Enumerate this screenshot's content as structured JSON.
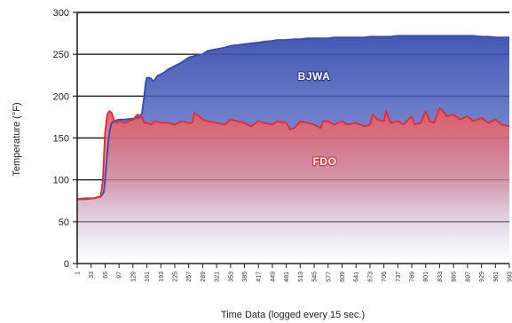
{
  "chart_data": {
    "type": "area",
    "title": "",
    "xlabel": "Time Data (logged every 15 sec.)",
    "ylabel": "Temperature (°F)",
    "ylim": [
      0,
      300
    ],
    "yticks": [
      0,
      50,
      100,
      150,
      200,
      250,
      300
    ],
    "xlim": [
      1,
      993
    ],
    "xticks": [
      "1",
      "33",
      "65",
      "97",
      "129",
      "161",
      "193",
      "225",
      "257",
      "289",
      "321",
      "353",
      "385",
      "417",
      "449",
      "481",
      "513",
      "545",
      "577",
      "609",
      "641",
      "673",
      "705",
      "737",
      "769",
      "801",
      "833",
      "865",
      "897",
      "929",
      "961",
      "993"
    ],
    "grid": "horizontal",
    "legend": "none",
    "series": [
      {
        "name": "BJWA",
        "color": "#3a4fb0",
        "x": [
          1,
          20,
          40,
          55,
          62,
          65,
          68,
          72,
          76,
          80,
          85,
          90,
          97,
          110,
          129,
          145,
          150,
          155,
          158,
          161,
          165,
          170,
          175,
          180,
          185,
          193,
          200,
          210,
          225,
          240,
          257,
          270,
          289,
          300,
          321,
          340,
          353,
          370,
          385,
          400,
          417,
          430,
          449,
          460,
          481,
          500,
          513,
          530,
          545,
          560,
          577,
          590,
          609,
          620,
          641,
          660,
          673,
          690,
          705,
          720,
          737,
          750,
          769,
          780,
          801,
          820,
          833,
          850,
          865,
          880,
          897,
          910,
          929,
          945,
          961,
          975,
          993
        ],
        "values": [
          77,
          77,
          78,
          80,
          85,
          100,
          120,
          145,
          160,
          168,
          170,
          171,
          172,
          172,
          173,
          175,
          180,
          200,
          215,
          222,
          222,
          221,
          218,
          220,
          224,
          226,
          228,
          232,
          236,
          240,
          246,
          248,
          250,
          254,
          256,
          258,
          260,
          261,
          262,
          263,
          264,
          265,
          266,
          267,
          267,
          268,
          268,
          269,
          269,
          269,
          269,
          270,
          270,
          270,
          270,
          270,
          271,
          271,
          271,
          271,
          272,
          272,
          272,
          272,
          272,
          272,
          272,
          272,
          272,
          272,
          272,
          272,
          271,
          271,
          270,
          270,
          270
        ]
      },
      {
        "name": "FDO",
        "color": "#e0303a",
        "x": [
          1,
          20,
          40,
          55,
          60,
          65,
          70,
          75,
          80,
          85,
          90,
          97,
          110,
          129,
          140,
          150,
          155,
          161,
          170,
          180,
          193,
          210,
          225,
          240,
          257,
          265,
          270,
          280,
          289,
          300,
          321,
          340,
          353,
          370,
          385,
          400,
          417,
          430,
          449,
          460,
          481,
          490,
          500,
          513,
          530,
          545,
          560,
          565,
          577,
          590,
          609,
          620,
          641,
          660,
          673,
          680,
          690,
          705,
          710,
          720,
          737,
          750,
          769,
          775,
          790,
          801,
          810,
          820,
          833,
          850,
          865,
          880,
          897,
          910,
          929,
          945,
          961,
          975,
          993
        ],
        "values": [
          77,
          78,
          78,
          80,
          100,
          155,
          178,
          182,
          180,
          172,
          168,
          170,
          168,
          172,
          178,
          175,
          168,
          168,
          166,
          170,
          168,
          168,
          166,
          170,
          168,
          168,
          180,
          176,
          172,
          170,
          168,
          166,
          172,
          170,
          168,
          164,
          170,
          168,
          166,
          170,
          168,
          160,
          162,
          170,
          168,
          166,
          162,
          170,
          170,
          166,
          170,
          166,
          168,
          164,
          166,
          178,
          172,
          170,
          182,
          168,
          170,
          166,
          176,
          166,
          168,
          182,
          170,
          168,
          186,
          176,
          178,
          172,
          176,
          170,
          174,
          168,
          172,
          166,
          164
        ]
      }
    ]
  }
}
